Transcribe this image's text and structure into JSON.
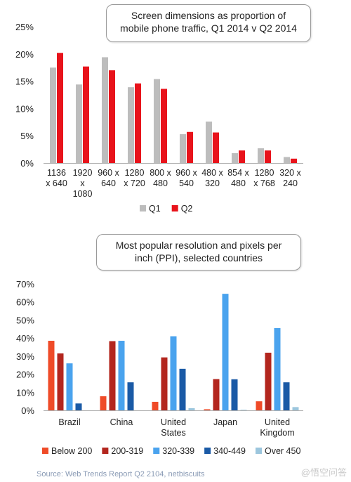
{
  "chart_data": [
    {
      "type": "bar",
      "title_lines": [
        "Screen dimensions as proportion of",
        "mobile phone traffic, Q1 2014 v Q2 2014"
      ],
      "categories": [
        [
          "1136",
          "x 640"
        ],
        [
          "1920",
          "x",
          "1080"
        ],
        [
          "960 x",
          "640"
        ],
        [
          "1280",
          "x 720"
        ],
        [
          "800 x",
          "480"
        ],
        [
          "960 x",
          "540"
        ],
        [
          "480 x",
          "320"
        ],
        [
          "854 x",
          "480"
        ],
        [
          "1280",
          "x 768"
        ],
        [
          "320 x",
          "240"
        ]
      ],
      "y_ticks": [
        "0%",
        "5%",
        "10%",
        "15%",
        "20%",
        "25%"
      ],
      "ylim": [
        0,
        25
      ],
      "series": [
        {
          "name": "Q1",
          "color": "#bdbdbd",
          "values": [
            17.5,
            14.4,
            19.4,
            13.9,
            15.4,
            5.3,
            7.6,
            1.8,
            2.7,
            1.1
          ]
        },
        {
          "name": "Q2",
          "color": "#e8131b",
          "values": [
            20.2,
            17.7,
            17.0,
            14.6,
            13.6,
            5.7,
            5.6,
            2.3,
            2.3,
            0.8
          ]
        }
      ],
      "legend_position": "bottom"
    },
    {
      "type": "bar",
      "title_lines": [
        "Most popular resolution and pixels per",
        "inch (PPI), selected countries"
      ],
      "categories": [
        [
          "Brazil"
        ],
        [
          "China"
        ],
        [
          "United",
          "States"
        ],
        [
          "Japan"
        ],
        [
          "United",
          "Kingdom"
        ]
      ],
      "y_ticks": [
        "0%",
        "10%",
        "20%",
        "30%",
        "40%",
        "50%",
        "60%",
        "70%"
      ],
      "ylim": [
        0,
        70
      ],
      "series": [
        {
          "name": "Below 200",
          "color": "#ef4b28",
          "values": [
            38.5,
            7.8,
            4.7,
            0.6,
            5.0
          ]
        },
        {
          "name": "200-319",
          "color": "#b3261e",
          "values": [
            31.5,
            38.3,
            29.3,
            17.3,
            31.9
          ]
        },
        {
          "name": "320-339",
          "color": "#4aa3ee",
          "values": [
            26.0,
            38.5,
            41.0,
            64.5,
            45.5
          ]
        },
        {
          "name": "340-449",
          "color": "#1a5aa6",
          "values": [
            3.8,
            15.5,
            23.0,
            17.2,
            15.5
          ]
        },
        {
          "name": "Over 450",
          "color": "#9cc6dd",
          "values": [
            0.0,
            0.0,
            1.2,
            0.3,
            1.8
          ]
        }
      ],
      "legend_position": "bottom"
    }
  ],
  "source": "Source: Web Trends Report Q2 2104, netbiscuits",
  "watermark": "@悟空问答"
}
